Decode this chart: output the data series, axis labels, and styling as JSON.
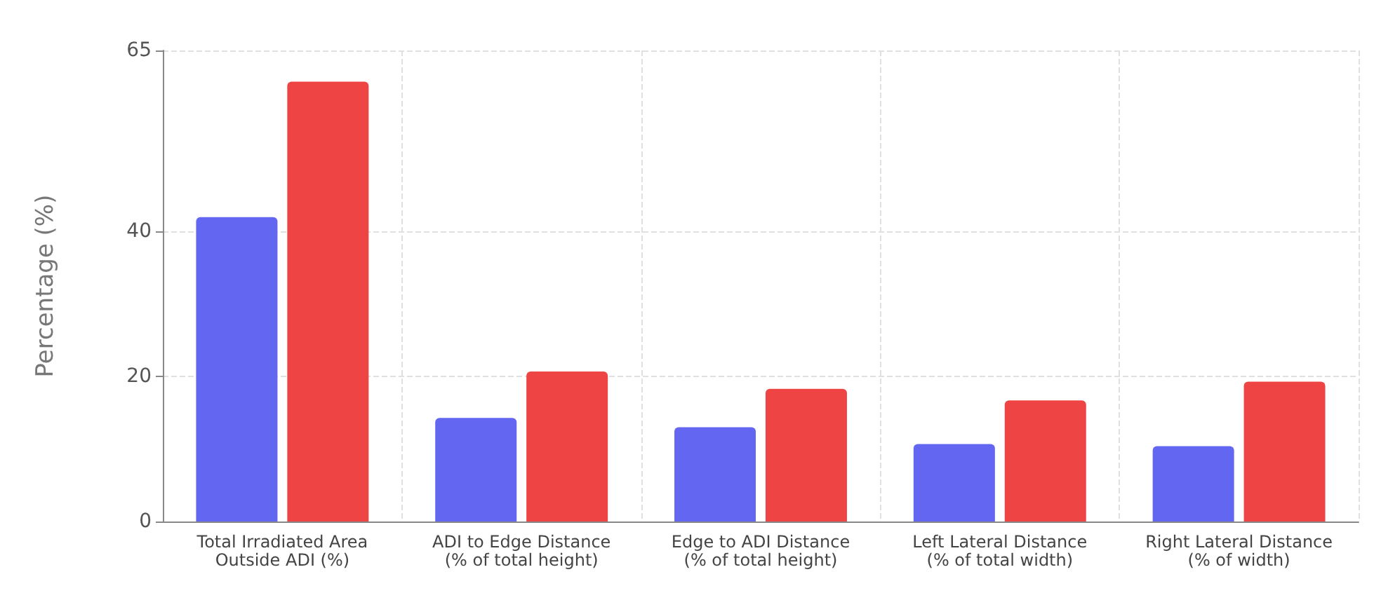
{
  "chart_data": {
    "type": "bar",
    "ylabel": "Percentage (%)",
    "categories": [
      "Total Irradiated Area\nOutside ADI (%)",
      "ADI to Edge Distance\n(% of total height)",
      "Edge to ADI Distance\n(% of total height)",
      "Left Lateral Distance\n(% of total width)",
      "Right Lateral Distance\n(% of width)"
    ],
    "series": [
      {
        "color": "#6366f1",
        "values": [
          42.0,
          14.3,
          13.0,
          10.7,
          10.4
        ]
      },
      {
        "color": "#ef4444",
        "values": [
          60.7,
          20.7,
          18.3,
          16.7,
          19.3
        ]
      }
    ],
    "ylim": [
      0,
      65
    ],
    "yticks": [
      0,
      20,
      40,
      65
    ],
    "grid": true
  }
}
